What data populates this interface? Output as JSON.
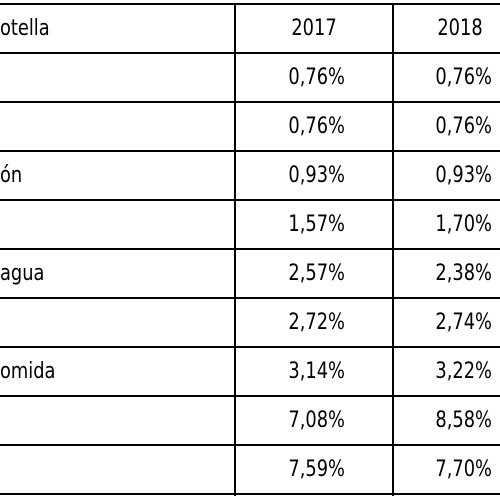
{
  "table": {
    "header": [
      "otella",
      "2017",
      "2018"
    ],
    "rows": [
      {
        "values": [
          "0,76%",
          "0,76%"
        ]
      },
      {
        "values": [
          "0,76%",
          "0,76%"
        ]
      },
      {
        "label": "ón",
        "values": [
          "0,93%",
          "0,93%"
        ]
      },
      {
        "values": [
          "1,57%",
          "1,70%"
        ]
      },
      {
        "label": "agua",
        "values": [
          "2,57%",
          "2,38%"
        ]
      },
      {
        "values": [
          "2,72%",
          "2,74%"
        ]
      },
      {
        "label": "omida",
        "values": [
          "3,14%",
          "3,22%"
        ]
      },
      {
        "values": [
          "7,08%",
          "8,58%"
        ]
      },
      {
        "values": [
          "7,59%",
          "7,70%"
        ]
      }
    ]
  }
}
